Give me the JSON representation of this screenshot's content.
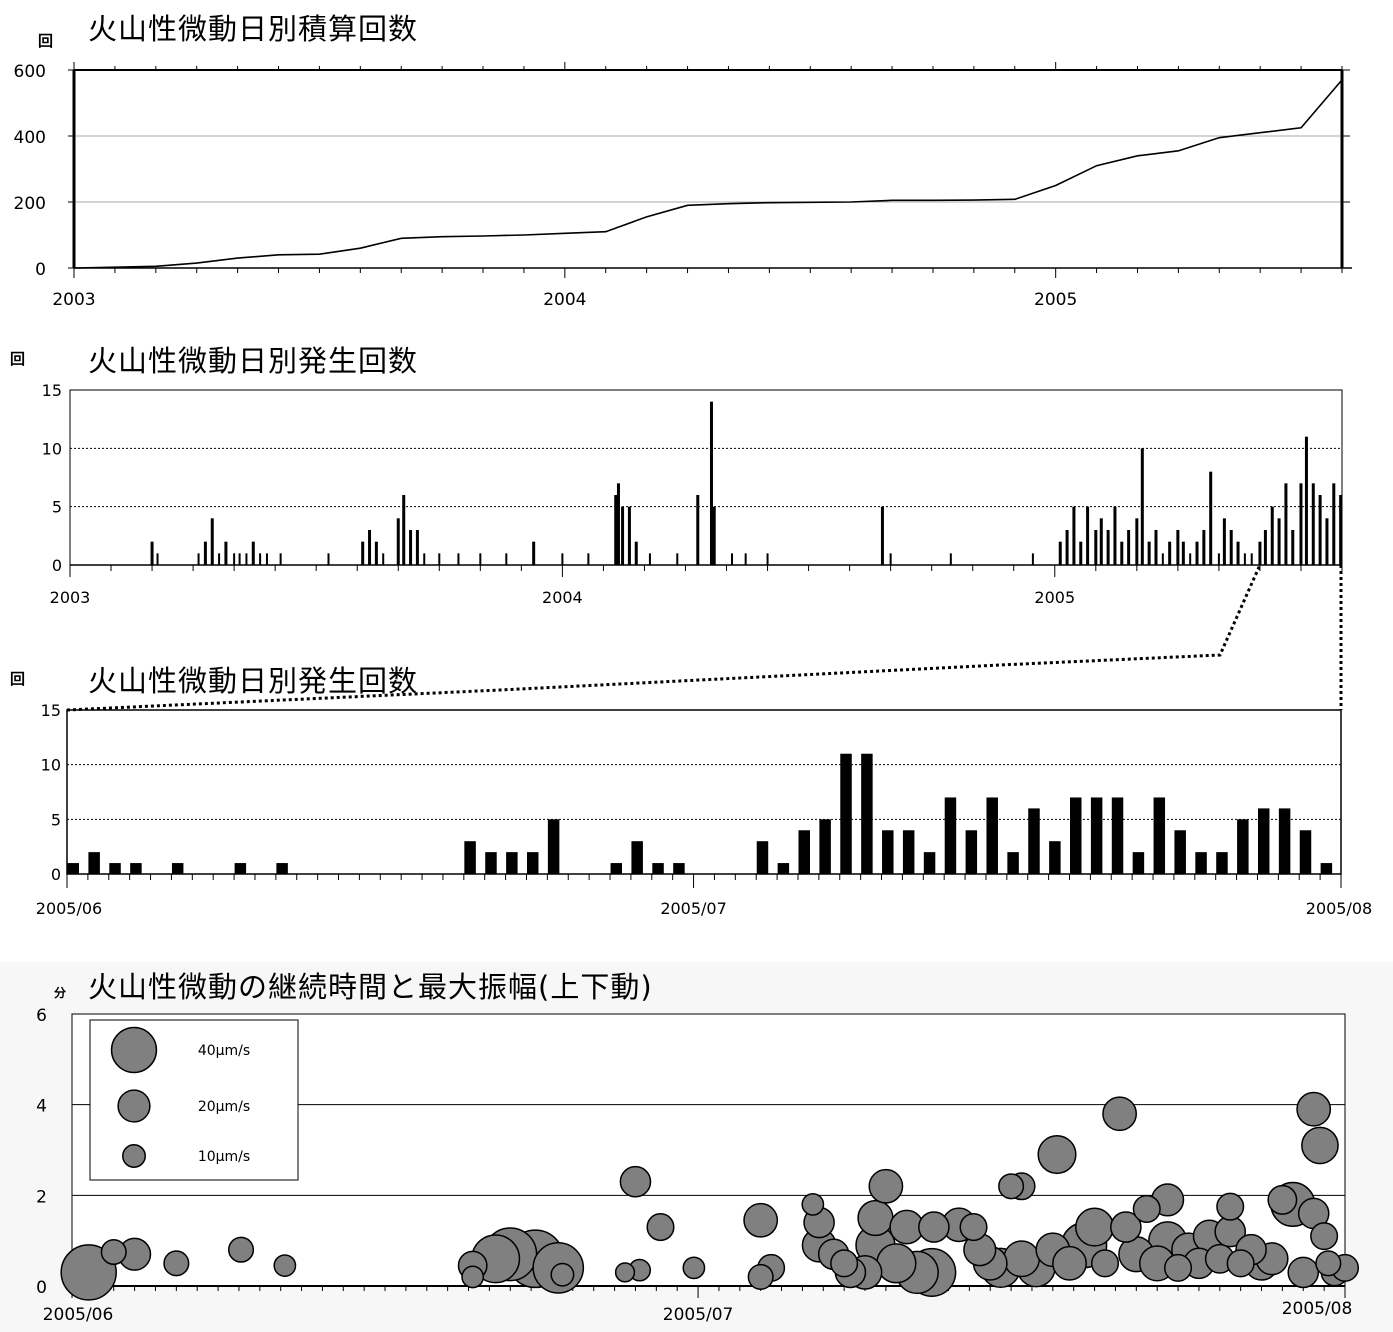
{
  "chart_data": [
    {
      "type": "line",
      "title": "火山性微動日別積算回数",
      "ylabel": "回",
      "ylim": [
        0,
        600
      ],
      "yticks": [
        "0",
        "200",
        "400",
        "600"
      ],
      "xlim": [
        "2003-01",
        "2005-08"
      ],
      "xticks": [
        "2003",
        "2004",
        "2005"
      ],
      "grid": true,
      "x": [
        "2003-01",
        "2003-03",
        "2003-04",
        "2003-05",
        "2003-06",
        "2003-07",
        "2003-08",
        "2003-09",
        "2003-10",
        "2003-11",
        "2003-12",
        "2004-01",
        "2004-02",
        "2004-03",
        "2004-04",
        "2004-05",
        "2004-06",
        "2004-07",
        "2004-08",
        "2004-09",
        "2004-10",
        "2004-11",
        "2004-12",
        "2005-01",
        "2005-02",
        "2005-03",
        "2005-04",
        "2005-05",
        "2005-06",
        "2005-07",
        "2005-08"
      ],
      "values": [
        0,
        5,
        15,
        30,
        40,
        42,
        60,
        90,
        95,
        97,
        100,
        105,
        110,
        155,
        190,
        195,
        198,
        199,
        200,
        205,
        205,
        206,
        208,
        250,
        310,
        340,
        355,
        395,
        410,
        425,
        570
      ]
    },
    {
      "type": "bar",
      "title": "火山性微動日別発生回数",
      "ylabel": "回",
      "ylim": [
        0,
        15
      ],
      "yticks": [
        "0",
        "5",
        "10",
        "15"
      ],
      "xlim": [
        "2003-01",
        "2005-08"
      ],
      "xticks": [
        "2003",
        "2004",
        "2005"
      ],
      "grid": true,
      "x": [
        "2003-03-01",
        "2003-03-05",
        "2003-04-05",
        "2003-04-10",
        "2003-04-15",
        "2003-04-20",
        "2003-04-25",
        "2003-05-01",
        "2003-05-05",
        "2003-05-10",
        "2003-05-15",
        "2003-05-20",
        "2003-05-25",
        "2003-06-05",
        "2003-07-10",
        "2003-08-05",
        "2003-08-10",
        "2003-08-15",
        "2003-08-20",
        "2003-09-01",
        "2003-09-05",
        "2003-09-10",
        "2003-09-15",
        "2003-09-20",
        "2003-10-01",
        "2003-10-15",
        "2003-11-01",
        "2003-11-20",
        "2003-12-10",
        "2004-01-01",
        "2004-01-20",
        "2004-02-10",
        "2004-02-12",
        "2004-02-15",
        "2004-02-20",
        "2004-02-25",
        "2004-03-05",
        "2004-03-25",
        "2004-04-10",
        "2004-04-20",
        "2004-04-22",
        "2004-05-05",
        "2004-05-15",
        "2004-06-01",
        "2004-08-25",
        "2004-09-01",
        "2004-10-15",
        "2004-12-15",
        "2005-01-05",
        "2005-01-10",
        "2005-01-15",
        "2005-01-20",
        "2005-01-25",
        "2005-02-01",
        "2005-02-05",
        "2005-02-10",
        "2005-02-15",
        "2005-02-20",
        "2005-02-25",
        "2005-03-01",
        "2005-03-05",
        "2005-03-10",
        "2005-03-15",
        "2005-03-20",
        "2005-03-25",
        "2005-04-01",
        "2005-04-05",
        "2005-04-10",
        "2005-04-15",
        "2005-04-20",
        "2005-04-25",
        "2005-05-01",
        "2005-05-05",
        "2005-05-10",
        "2005-05-15",
        "2005-05-20",
        "2005-05-25",
        "2005-06-01",
        "2005-06-05",
        "2005-06-10",
        "2005-06-15",
        "2005-06-20",
        "2005-06-25",
        "2005-07-01",
        "2005-07-05",
        "2005-07-10",
        "2005-07-15",
        "2005-07-20",
        "2005-07-25",
        "2005-07-30"
      ],
      "values": [
        2,
        1,
        1,
        2,
        4,
        1,
        2,
        1,
        1,
        1,
        2,
        1,
        1,
        1,
        1,
        2,
        3,
        2,
        1,
        4,
        6,
        3,
        3,
        1,
        1,
        1,
        1,
        1,
        2,
        1,
        1,
        6,
        7,
        5,
        5,
        2,
        1,
        1,
        6,
        14,
        5,
        1,
        1,
        1,
        5,
        1,
        1,
        1,
        2,
        3,
        5,
        2,
        5,
        3,
        4,
        3,
        5,
        2,
        3,
        4,
        10,
        2,
        3,
        1,
        2,
        3,
        2,
        1,
        2,
        3,
        8,
        1,
        4,
        3,
        2,
        1,
        1,
        2,
        3,
        5,
        4,
        7,
        3,
        7,
        11,
        7,
        6,
        4,
        7,
        6
      ]
    },
    {
      "type": "bar",
      "title": "火山性微動日別発生回数",
      "ylabel": "回",
      "ylim": [
        0,
        15
      ],
      "yticks": [
        "0",
        "5",
        "10",
        "15"
      ],
      "xlim": [
        "2005-06-01",
        "2005-08-01"
      ],
      "xticks": [
        "2005/06",
        "2005/07",
        "2005/08"
      ],
      "grid": true,
      "x": [
        "06-01",
        "06-02",
        "06-03",
        "06-04",
        "06-05",
        "06-06",
        "06-07",
        "06-08",
        "06-09",
        "06-10",
        "06-11",
        "06-12",
        "06-13",
        "06-14",
        "06-15",
        "06-16",
        "06-17",
        "06-18",
        "06-19",
        "06-20",
        "06-21",
        "06-22",
        "06-23",
        "06-24",
        "06-25",
        "06-26",
        "06-27",
        "06-28",
        "06-29",
        "06-30",
        "07-01",
        "07-02",
        "07-03",
        "07-04",
        "07-05",
        "07-06",
        "07-07",
        "07-08",
        "07-09",
        "07-10",
        "07-11",
        "07-12",
        "07-13",
        "07-14",
        "07-15",
        "07-16",
        "07-17",
        "07-18",
        "07-19",
        "07-20",
        "07-21",
        "07-22",
        "07-23",
        "07-24",
        "07-25",
        "07-26",
        "07-27",
        "07-28",
        "07-29",
        "07-30",
        "07-31"
      ],
      "values": [
        1,
        2,
        1,
        1,
        0,
        1,
        0,
        0,
        1,
        0,
        1,
        0,
        0,
        0,
        0,
        0,
        0,
        0,
        0,
        3,
        2,
        2,
        2,
        5,
        0,
        0,
        1,
        3,
        1,
        1,
        0,
        0,
        0,
        3,
        1,
        4,
        5,
        11,
        11,
        4,
        4,
        2,
        7,
        4,
        7,
        2,
        6,
        3,
        7,
        7,
        7,
        2,
        7,
        4,
        2,
        2,
        5,
        6,
        6,
        4,
        1
      ]
    },
    {
      "type": "scatter",
      "title": "火山性微動の継続時間と最大振幅(上下動)",
      "ylabel": "分",
      "ylim": [
        0,
        6
      ],
      "yticks": [
        "0",
        "2",
        "4",
        "6"
      ],
      "xlim": [
        0,
        61
      ],
      "xticks": [
        "2005/06",
        "2005/07",
        "2005/08"
      ],
      "grid": true,
      "legend": [
        "40μm/s",
        "20μm/s",
        "10μm/s"
      ],
      "legend_values": [
        40,
        20,
        10
      ],
      "legend_position": "top-left",
      "points": [
        {
          "x": 0.8,
          "y": 0.3,
          "amp": 60
        },
        {
          "x": 2.0,
          "y": 0.75,
          "amp": 12
        },
        {
          "x": 3.0,
          "y": 0.7,
          "amp": 20
        },
        {
          "x": 5.0,
          "y": 0.5,
          "amp": 12
        },
        {
          "x": 8.1,
          "y": 0.8,
          "amp": 12
        },
        {
          "x": 10.2,
          "y": 0.45,
          "amp": 9
        },
        {
          "x": 19.2,
          "y": 0.45,
          "amp": 16
        },
        {
          "x": 19.2,
          "y": 0.2,
          "amp": 9
        },
        {
          "x": 20.3,
          "y": 0.6,
          "amp": 45
        },
        {
          "x": 21.0,
          "y": 0.7,
          "amp": 55
        },
        {
          "x": 22.2,
          "y": 0.6,
          "amp": 65
        },
        {
          "x": 23.3,
          "y": 0.4,
          "amp": 50
        },
        {
          "x": 23.5,
          "y": 0.25,
          "amp": 10
        },
        {
          "x": 26.5,
          "y": 0.3,
          "amp": 7
        },
        {
          "x": 27.2,
          "y": 0.35,
          "amp": 9
        },
        {
          "x": 27.0,
          "y": 2.3,
          "amp": 18
        },
        {
          "x": 28.2,
          "y": 1.3,
          "amp": 14
        },
        {
          "x": 29.8,
          "y": 0.4,
          "amp": 9
        },
        {
          "x": 33.0,
          "y": 1.45,
          "amp": 22
        },
        {
          "x": 33.0,
          "y": 0.2,
          "amp": 12
        },
        {
          "x": 33.5,
          "y": 0.4,
          "amp": 14
        },
        {
          "x": 35.5,
          "y": 1.8,
          "amp": 9
        },
        {
          "x": 35.8,
          "y": 1.4,
          "amp": 18
        },
        {
          "x": 35.8,
          "y": 0.9,
          "amp": 22
        },
        {
          "x": 36.5,
          "y": 0.7,
          "amp": 18
        },
        {
          "x": 37.0,
          "y": 0.5,
          "amp": 14
        },
        {
          "x": 37.3,
          "y": 0.3,
          "amp": 18
        },
        {
          "x": 38.0,
          "y": 0.3,
          "amp": 22
        },
        {
          "x": 38.5,
          "y": 1.5,
          "amp": 24
        },
        {
          "x": 38.5,
          "y": 0.9,
          "amp": 30
        },
        {
          "x": 39.0,
          "y": 2.2,
          "amp": 22
        },
        {
          "x": 39.5,
          "y": 0.5,
          "amp": 30
        },
        {
          "x": 40.0,
          "y": 1.3,
          "amp": 22
        },
        {
          "x": 40.5,
          "y": 0.3,
          "amp": 35
        },
        {
          "x": 41.2,
          "y": 0.3,
          "amp": 45
        },
        {
          "x": 41.3,
          "y": 1.3,
          "amp": 18
        },
        {
          "x": 42.5,
          "y": 1.35,
          "amp": 22
        },
        {
          "x": 43.2,
          "y": 1.3,
          "amp": 14
        },
        {
          "x": 43.5,
          "y": 0.8,
          "amp": 20
        },
        {
          "x": 44.0,
          "y": 0.5,
          "amp": 22
        },
        {
          "x": 44.5,
          "y": 0.4,
          "amp": 30
        },
        {
          "x": 45.0,
          "y": 2.2,
          "amp": 12
        },
        {
          "x": 45.5,
          "y": 2.2,
          "amp": 14
        },
        {
          "x": 45.5,
          "y": 0.6,
          "amp": 25
        },
        {
          "x": 46.2,
          "y": 0.4,
          "amp": 28
        },
        {
          "x": 47.0,
          "y": 0.8,
          "amp": 22
        },
        {
          "x": 47.2,
          "y": 2.9,
          "amp": 28
        },
        {
          "x": 47.8,
          "y": 0.5,
          "amp": 22
        },
        {
          "x": 48.5,
          "y": 0.9,
          "amp": 40
        },
        {
          "x": 49.0,
          "y": 1.3,
          "amp": 28
        },
        {
          "x": 49.5,
          "y": 0.5,
          "amp": 14
        },
        {
          "x": 50.2,
          "y": 3.8,
          "amp": 22
        },
        {
          "x": 50.5,
          "y": 1.3,
          "amp": 18
        },
        {
          "x": 51.0,
          "y": 0.7,
          "amp": 24
        },
        {
          "x": 51.5,
          "y": 1.7,
          "amp": 14
        },
        {
          "x": 52.0,
          "y": 0.5,
          "amp": 24
        },
        {
          "x": 52.5,
          "y": 1.0,
          "amp": 28
        },
        {
          "x": 52.5,
          "y": 1.9,
          "amp": 20
        },
        {
          "x": 53.0,
          "y": 0.4,
          "amp": 14
        },
        {
          "x": 53.5,
          "y": 0.8,
          "amp": 22
        },
        {
          "x": 54.0,
          "y": 0.5,
          "amp": 18
        },
        {
          "x": 54.5,
          "y": 1.1,
          "amp": 20
        },
        {
          "x": 55.0,
          "y": 0.6,
          "amp": 16
        },
        {
          "x": 55.5,
          "y": 1.2,
          "amp": 18
        },
        {
          "x": 55.5,
          "y": 1.75,
          "amp": 14
        },
        {
          "x": 56.0,
          "y": 0.5,
          "amp": 14
        },
        {
          "x": 56.5,
          "y": 0.8,
          "amp": 18
        },
        {
          "x": 57.0,
          "y": 0.5,
          "amp": 22
        },
        {
          "x": 57.5,
          "y": 0.6,
          "amp": 20
        },
        {
          "x": 58.0,
          "y": 1.9,
          "amp": 16
        },
        {
          "x": 58.5,
          "y": 1.8,
          "amp": 38
        },
        {
          "x": 59.0,
          "y": 0.3,
          "amp": 18
        },
        {
          "x": 59.5,
          "y": 3.9,
          "amp": 22
        },
        {
          "x": 59.5,
          "y": 1.6,
          "amp": 18
        },
        {
          "x": 59.8,
          "y": 3.1,
          "amp": 26
        },
        {
          "x": 60.0,
          "y": 1.1,
          "amp": 14
        },
        {
          "x": 60.2,
          "y": 0.5,
          "amp": 12
        },
        {
          "x": 60.5,
          "y": 0.3,
          "amp": 14
        },
        {
          "x": 61.0,
          "y": 0.4,
          "amp": 14
        }
      ]
    }
  ]
}
